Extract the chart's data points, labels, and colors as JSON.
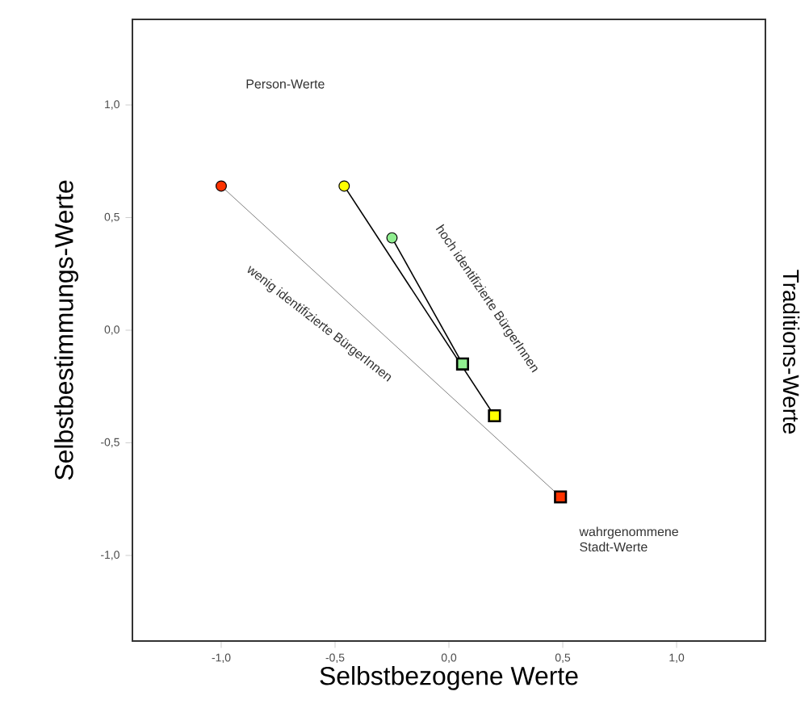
{
  "chart_data": {
    "type": "scatter",
    "xlabel": "Selbstbezogene Werte",
    "ylabel": "Selbstbestimmungs-Werte",
    "y2label": "Traditions-Werte",
    "xlim": [
      -1.39,
      1.39
    ],
    "ylim": [
      -1.38,
      1.38
    ],
    "xticks": [
      {
        "value": -1.0,
        "label": "-1,0"
      },
      {
        "value": -0.5,
        "label": "-0,5"
      },
      {
        "value": 0.0,
        "label": "0,0"
      },
      {
        "value": 0.5,
        "label": "0,5"
      },
      {
        "value": 1.0,
        "label": "1,0"
      }
    ],
    "yticks": [
      {
        "value": -1.0,
        "label": "-1,0"
      },
      {
        "value": -0.5,
        "label": "-0,5"
      },
      {
        "value": 0.0,
        "label": "0,0"
      },
      {
        "value": 0.5,
        "label": "0,5"
      },
      {
        "value": 1.0,
        "label": "1,0"
      }
    ],
    "series": [
      {
        "type": "line",
        "color": "#808080",
        "x": [
          -1.0,
          0.49
        ],
        "values": [
          0.64,
          -0.74
        ]
      },
      {
        "type": "line",
        "color": "#000000",
        "x": [
          -0.46,
          0.2
        ],
        "values": [
          0.64,
          -0.38
        ]
      },
      {
        "type": "line",
        "color": "#000000",
        "x": [
          -0.25,
          0.06
        ],
        "values": [
          0.41,
          -0.15
        ]
      },
      {
        "marker": "circle",
        "x": [
          -1.0,
          -0.46,
          -0.25
        ],
        "values": [
          0.64,
          0.64,
          0.41
        ],
        "colors": [
          "#ff3300",
          "#ffff00",
          "#90ee90"
        ]
      },
      {
        "marker": "square",
        "x": [
          0.49,
          0.2,
          0.06
        ],
        "values": [
          -0.74,
          -0.38,
          -0.15
        ],
        "colors": [
          "#ff3300",
          "#ffff00",
          "#90ee90"
        ]
      }
    ],
    "annotations": [
      "Person-Werte",
      "wahrgenommene Stadt-Werte",
      "wenig identifizierte BürgerInnen",
      "hoch identifizierte BürgerInnen"
    ]
  }
}
